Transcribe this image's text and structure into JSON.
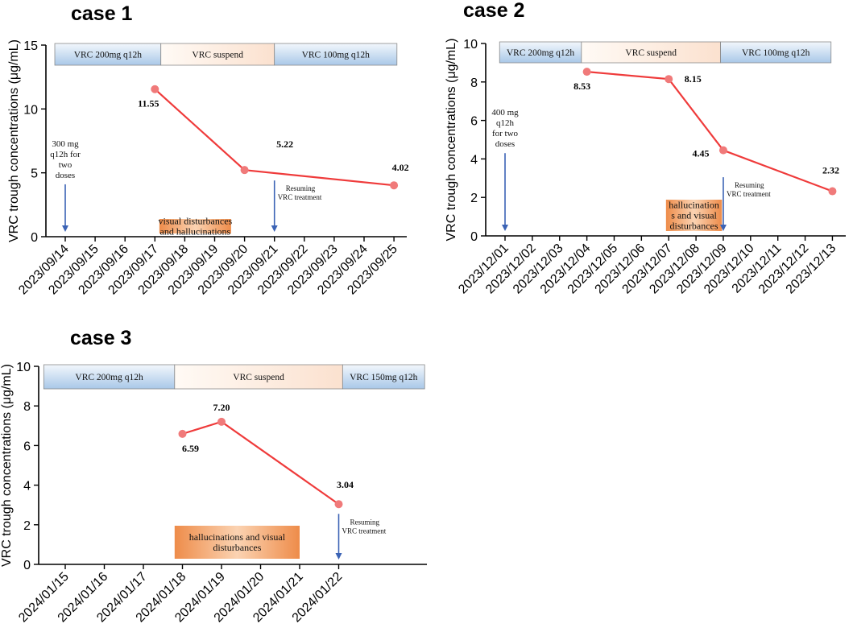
{
  "colors": {
    "series": "#ef3b3b",
    "point": "#f07a7a",
    "arrow": "#3b63b5",
    "phase_blue_top": "#f2f7fc",
    "phase_blue_bottom": "#a9c8e8",
    "phase_peach_left": "#fffaf5",
    "phase_peach_right": "#fbe1cf",
    "event_orange_mid": "#fbd3b2",
    "event_orange_edge": "#ee8c4a"
  },
  "chart_data": [
    {
      "type": "line",
      "title": "case 1",
      "ylabel": "VRC trough concentrations (μg/mL)",
      "xlabel": "",
      "ylim": [
        0,
        15
      ],
      "yticks": [
        0,
        5,
        10,
        15
      ],
      "categories": [
        "2023/09/14",
        "2023/09/15",
        "2023/09/16",
        "2023/09/17",
        "2023/09/18",
        "2023/09/19",
        "2023/09/20",
        "2023/09/21",
        "2023/09/22",
        "2023/09/23",
        "2023/09/24",
        "2023/09/25"
      ],
      "series": [
        {
          "name": "VRC trough concentration",
          "x": [
            3,
            6,
            11
          ],
          "values": [
            11.55,
            5.22,
            4.02
          ],
          "labels": [
            "11.55",
            "5.22",
            "4.02"
          ]
        }
      ],
      "phases": [
        {
          "label": "VRC 200mg q12h",
          "start": -0.35,
          "end": 3.2,
          "style": "blue"
        },
        {
          "label": "VRC suspend",
          "start": 3.2,
          "end": 7.0,
          "style": "peach"
        },
        {
          "label": "VRC 100mg q12h",
          "start": 7.0,
          "end": 11.1,
          "style": "blue"
        }
      ],
      "events": [
        {
          "lines": [
            "visual disturbances",
            "and hallucinations"
          ],
          "start": 3.15,
          "end": 5.55
        }
      ],
      "arrows": [
        {
          "x": 0,
          "lines": [
            "300 mg",
            "q12h for",
            "two",
            "doses"
          ],
          "size": "normal",
          "side": "above"
        },
        {
          "x": 7,
          "lines": [
            "Resuming",
            "VRC treatment"
          ],
          "size": "small",
          "side": "right"
        }
      ]
    },
    {
      "type": "line",
      "title": "case 2",
      "ylabel": "VRC trough concentrations (μg/mL)",
      "xlabel": "",
      "ylim": [
        0,
        10
      ],
      "yticks": [
        0,
        2,
        4,
        6,
        8,
        10
      ],
      "categories": [
        "2023/12/01",
        "2023/12/02",
        "2023/12/03",
        "2023/12/04",
        "2023/12/05",
        "2023/12/06",
        "2023/12/07",
        "2023/12/08",
        "2023/12/09",
        "2023/12/10",
        "2023/12/11",
        "2023/12/12",
        "2023/12/13"
      ],
      "series": [
        {
          "name": "VRC trough concentration",
          "x": [
            3,
            6,
            8,
            12
          ],
          "values": [
            8.53,
            8.15,
            4.45,
            2.32
          ],
          "labels": [
            "8.53",
            "8.15",
            "4.45",
            "2.32"
          ]
        }
      ],
      "phases": [
        {
          "label": "VRC 200mg q12h",
          "start": -0.2,
          "end": 2.8,
          "style": "blue"
        },
        {
          "label": "VRC suspend",
          "start": 2.8,
          "end": 7.9,
          "style": "peach"
        },
        {
          "label": "VRC 100mg q12h",
          "start": 7.9,
          "end": 11.95,
          "style": "blue"
        }
      ],
      "events": [
        {
          "lines": [
            "hallucination",
            "s and visual",
            "disturbances"
          ],
          "start": 5.9,
          "end": 7.95
        }
      ],
      "arrows": [
        {
          "x": 0,
          "lines": [
            "400 mg",
            "q12h",
            "for two",
            "doses"
          ],
          "size": "normal",
          "side": "above"
        },
        {
          "x": 8,
          "lines": [
            "Resuming",
            "VRC treatment"
          ],
          "size": "small",
          "side": "right"
        }
      ]
    },
    {
      "type": "line",
      "title": "case 3",
      "ylabel": "VRC trough concentrations (μg/mL)",
      "xlabel": "",
      "ylim": [
        0,
        10
      ],
      "yticks": [
        0,
        2,
        4,
        6,
        8,
        10
      ],
      "categories": [
        "2024/01/15",
        "2024/01/16",
        "2024/01/17",
        "2024/01/18",
        "2024/01/19",
        "2024/01/20",
        "2024/01/21",
        "2024/01/22"
      ],
      "series": [
        {
          "name": "VRC trough concentration",
          "x": [
            3,
            4,
            7
          ],
          "values": [
            6.59,
            7.2,
            3.04
          ],
          "labels": [
            "6.59",
            "7.20",
            "3.04"
          ]
        }
      ],
      "phases": [
        {
          "label": "VRC 200mg q12h",
          "start": -0.55,
          "end": 2.8,
          "style": "blue"
        },
        {
          "label": "VRC suspend",
          "start": 2.8,
          "end": 7.1,
          "style": "peach"
        },
        {
          "label": "VRC 150mg q12h",
          "start": 7.1,
          "end": 9.2,
          "style": "blue"
        }
      ],
      "events": [
        {
          "lines": [
            "hallucinations and visual",
            "disturbances"
          ],
          "start": 2.8,
          "end": 6.0
        }
      ],
      "arrows": [
        {
          "x": 7,
          "lines": [
            "Resuming",
            "VRC treatment"
          ],
          "size": "small",
          "side": "right"
        }
      ]
    }
  ]
}
